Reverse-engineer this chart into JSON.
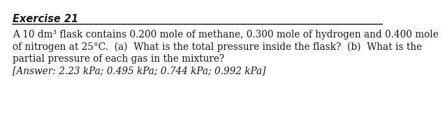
{
  "title": "Exercise 21",
  "body_lines": [
    "A 10 dm³ flask contains 0.200 mole of methane, 0.300 mole of hydrogen and 0.400 mole",
    "of nitrogen at 25°C.  (a)  What is the total pressure inside the flask?  (b)  What is the",
    "partial pressure of each gas in the mixture?"
  ],
  "answer_line": "[Answer: 2.23 kPa; 0.495 kPa; 0.744 kPa; 0.992 kPa]",
  "background_color": "#ffffff",
  "text_color": "#1a1a1a",
  "title_fontsize": 10.5,
  "body_fontsize": 9.8,
  "answer_fontsize": 9.8
}
